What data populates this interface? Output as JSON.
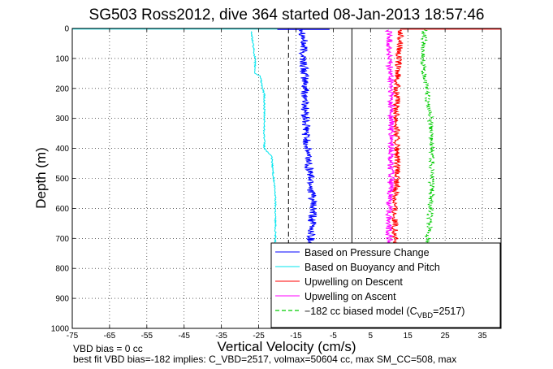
{
  "chart_data": {
    "type": "line",
    "title": "SG503 Ross2012, dive 364 started 08-Jan-2013 18:57:46",
    "xlabel": "Vertical Velocity (cm/s)",
    "ylabel": "Depth (m)",
    "xlim": [
      -75,
      40
    ],
    "ylim": [
      0,
      1000
    ],
    "y_reversed": true,
    "grid": "dotted",
    "xticks": [
      "-75",
      "-65",
      "-55",
      "-45",
      "-35",
      "-25",
      "-15",
      "-5",
      "5",
      "15",
      "25",
      "35"
    ],
    "xtick_values": [
      -75,
      -65,
      -55,
      -45,
      -35,
      -25,
      -15,
      -5,
      5,
      15,
      25,
      35
    ],
    "yticks": [
      "0",
      "100",
      "200",
      "300",
      "400",
      "500",
      "600",
      "700",
      "800",
      "900",
      "1000"
    ],
    "ytick_values": [
      0,
      100,
      200,
      300,
      400,
      500,
      600,
      700,
      800,
      900,
      1000
    ],
    "legend_position": "bottom-right",
    "reference_lines": [
      {
        "x": -17,
        "style": "dashed",
        "color": "#000000"
      },
      {
        "x": 0,
        "style": "solid",
        "color": "#000000"
      }
    ],
    "series": [
      {
        "name": "Based on Pressure Change",
        "color": "#0000ff",
        "noise": 1.2,
        "depth": [
          5,
          20,
          100,
          200,
          300,
          400,
          450,
          500,
          600,
          700,
          720
        ],
        "values": [
          -13,
          -13,
          -13,
          -12.5,
          -12.5,
          -12,
          -11.5,
          -11,
          -10.5,
          -11,
          -11
        ]
      },
      {
        "name": "Based on Buoyancy and Pitch",
        "color": "#00e5ee",
        "noise": 0.2,
        "depth": [
          10,
          100,
          150,
          160,
          200,
          220,
          400,
          420,
          430,
          500,
          560,
          600,
          700,
          720
        ],
        "values": [
          -27,
          -26,
          -26,
          -24.5,
          -24,
          -23.5,
          -23.5,
          -22,
          -21.5,
          -21,
          -20.5,
          -20.5,
          -20.5,
          -20.5
        ]
      },
      {
        "name": "Upwelling on Descent",
        "color": "#ff0000",
        "noise": 0.9,
        "depth": [
          5,
          50,
          100,
          200,
          300,
          400,
          500,
          600,
          700,
          720
        ],
        "values": [
          13,
          13,
          12.5,
          12,
          12,
          12,
          12,
          11.5,
          11.5,
          11.5
        ]
      },
      {
        "name": "Upwelling on Ascent",
        "color": "#ff00ff",
        "noise": 0.9,
        "depth": [
          5,
          50,
          100,
          200,
          300,
          400,
          500,
          600,
          700,
          720
        ],
        "values": [
          10,
          10,
          10,
          10.5,
          10.5,
          10.5,
          10.5,
          10,
          10,
          10
        ]
      },
      {
        "name": "-182 cc biased model (C_VBD=2517)",
        "color": "#00cc00",
        "noise": 0.8,
        "dashed": true,
        "depth": [
          5,
          100,
          200,
          300,
          400,
          500,
          600,
          700,
          720
        ],
        "values": [
          19.5,
          19,
          20,
          21,
          21.5,
          21.5,
          21,
          20.5,
          20.5
        ]
      }
    ]
  },
  "legend": {
    "items": [
      {
        "label": "Based on Pressure Change"
      },
      {
        "label": "Based on Buoyancy and Pitch"
      },
      {
        "label": "Upwelling on Descent"
      },
      {
        "label": "Upwelling on Ascent"
      },
      {
        "pre": "−182 cc biased model (C",
        "sub": "VBD",
        "post": "=2517)"
      }
    ]
  },
  "footer": {
    "line1": "VBD bias = 0 cc",
    "line2": "best fit VBD bias=-182 implies: C_VBD=2517, volmax=50604 cc, max SM_CC=508, max"
  }
}
